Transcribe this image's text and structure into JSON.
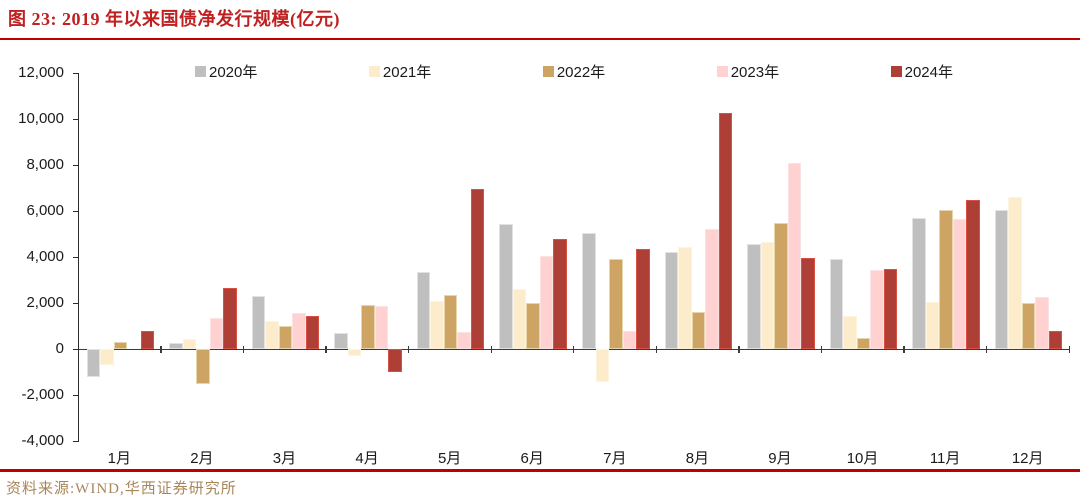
{
  "title": "图 23: 2019 年以来国债净发行规模(亿元)",
  "source": "资料来源:WIND,华西证券研究所",
  "accent_red": "#c00000",
  "chart_data": {
    "type": "bar",
    "title": "图 23: 2019 年以来国债净发行规模(亿元)",
    "unit": "亿元",
    "categories": [
      "1月",
      "2月",
      "3月",
      "4月",
      "5月",
      "6月",
      "7月",
      "8月",
      "9月",
      "10月",
      "11月",
      "12月"
    ],
    "series": [
      {
        "name": "2020年",
        "color": "#bfbfbf",
        "border": "#e2e2e2",
        "values": [
          -1200,
          250,
          2300,
          700,
          3350,
          5450,
          5050,
          4200,
          4550,
          3900,
          5700,
          6050
        ]
      },
      {
        "name": "2021年",
        "color": "#fceccb",
        "border": "#fdf4de",
        "values": [
          -700,
          450,
          1200,
          -300,
          2100,
          2600,
          -1450,
          4450,
          4650,
          1450,
          2050,
          6600
        ]
      },
      {
        "name": "2022年",
        "color": "#cda464",
        "border": "#e6d6ab",
        "values": [
          300,
          -1500,
          1000,
          1900,
          2350,
          2000,
          3900,
          1600,
          5500,
          500,
          6050,
          2000
        ]
      },
      {
        "name": "2023年",
        "color": "#ffd1d1",
        "border": "#fce3e3",
        "values": [
          0,
          1350,
          1550,
          1850,
          750,
          4050,
          800,
          5200,
          8100,
          3450,
          5650,
          2250
        ]
      },
      {
        "name": "2024年",
        "color": "#ae3f36",
        "border": "#d94f41",
        "values": [
          800,
          2650,
          1450,
          -1000,
          6950,
          4800,
          4350,
          10250,
          3950,
          3500,
          6500,
          800
        ]
      }
    ],
    "ylim": [
      -4000,
      12000
    ],
    "ytick_step": 2000,
    "ytick_labels": [
      "12,000",
      "10,000",
      "8,000",
      "6,000",
      "4,000",
      "2,000",
      "0",
      "-2,000",
      "-4,000"
    ],
    "legend_position": "top",
    "grid": false
  }
}
